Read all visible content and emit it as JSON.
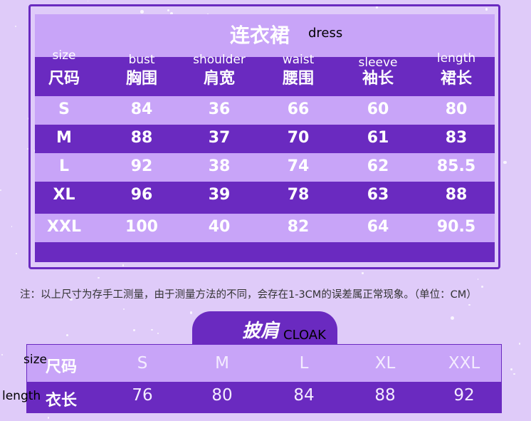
{
  "dress": {
    "title": "连衣裙",
    "title_en": "dress",
    "headers": [
      {
        "en": "size",
        "cn": "尺码"
      },
      {
        "en": "bust",
        "cn": "胸围"
      },
      {
        "en": "shoulder",
        "cn": "肩宽"
      },
      {
        "en": "waist",
        "cn": "腰围"
      },
      {
        "en": "sleeve",
        "cn": "袖长"
      },
      {
        "en": "length",
        "cn": "裙长"
      }
    ],
    "rows": [
      [
        "S",
        "84",
        "36",
        "66",
        "60",
        "80"
      ],
      [
        "M",
        "88",
        "37",
        "70",
        "61",
        "83"
      ],
      [
        "L",
        "92",
        "38",
        "74",
        "62",
        "85.5"
      ],
      [
        "XL",
        "96",
        "39",
        "78",
        "63",
        "88"
      ],
      [
        "XXL",
        "100",
        "40",
        "82",
        "64",
        "90.5"
      ]
    ]
  },
  "note": "注：以上尺寸为存手工测量，由于测量方法的不同，会存在1-3CM的误差属正常现象。（单位：CM）",
  "cloak": {
    "title": "披肩",
    "title_en": "CLOAK",
    "size_label": "尺码",
    "size_label_en": "size",
    "sizes": [
      "S",
      "M",
      "L",
      "XL",
      "XXL"
    ],
    "length_label": "衣长",
    "length_label_en": "length",
    "lengths": [
      "76",
      "80",
      "84",
      "88",
      "92"
    ]
  },
  "colors": {
    "dark": "#6a2ac0",
    "light": "#c8a4f8",
    "background": "#dfcbf9"
  }
}
